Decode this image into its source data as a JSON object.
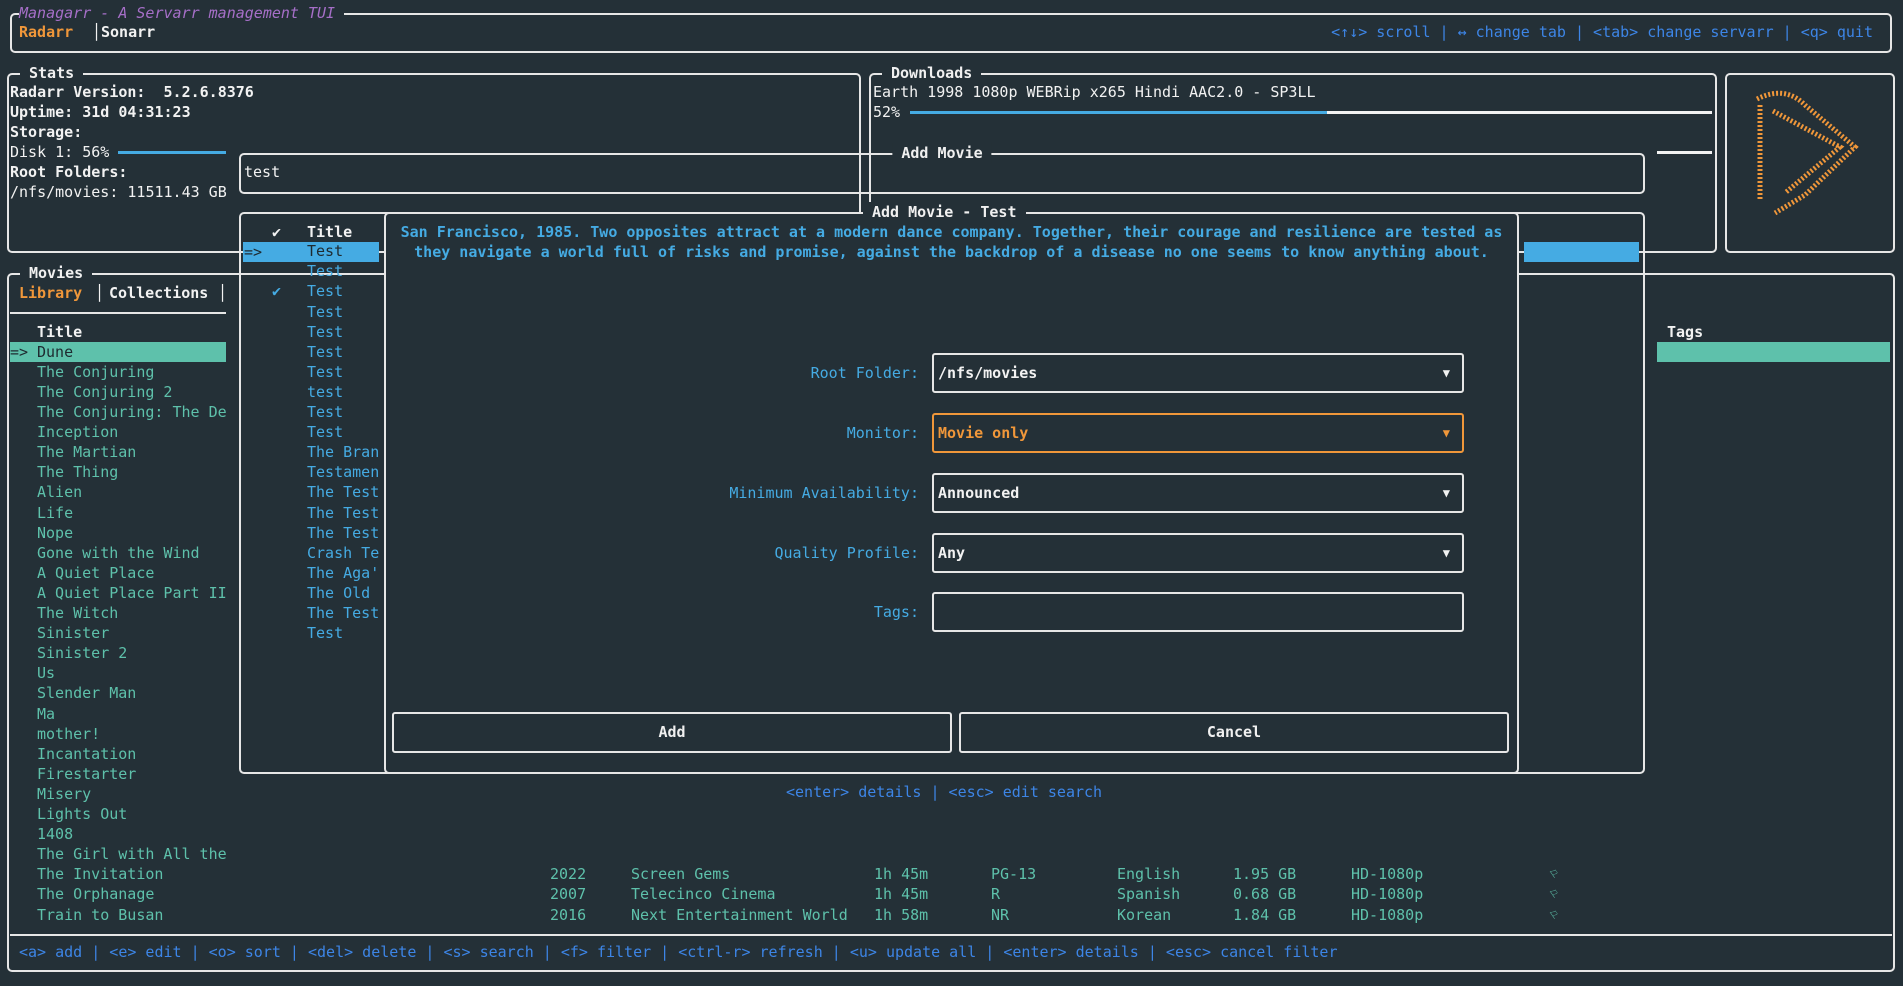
{
  "app": {
    "title": "Managarr - A Servarr management TUI",
    "servarr_tabs": [
      {
        "label": "Radarr",
        "active": true
      },
      {
        "label": "Sonarr",
        "active": false
      }
    ],
    "help": "<↑↓> scroll | ↔ change tab | <tab> change servarr | <q> quit"
  },
  "stats": {
    "title": "Stats",
    "version_label": "Radarr Version:  5.2.6.8376",
    "uptime_label": "Uptime: 31d 04:31:23",
    "storage_label": "Storage:",
    "disk_label": "Disk 1: 56%",
    "disk_percent": 56,
    "root_folders_label": "Root Folders:",
    "root_folder": "/nfs/movies: 11511.43 GB"
  },
  "downloads": {
    "title": "Downloads",
    "items": [
      {
        "name": "Earth 1998 1080p WEBRip x265 Hindi AAC2.0 - SP3LL",
        "percent_label": "52%",
        "percent": 52
      }
    ]
  },
  "logo": {
    "icon": "radarr-logo",
    "color": "#f0973a"
  },
  "movies": {
    "title": "Movies",
    "tabs": [
      {
        "label": "Library",
        "active": true
      },
      {
        "label": "Collections",
        "active": false
      }
    ],
    "title_header": "Title",
    "tags_header": "Tags",
    "selected_marker": "=>",
    "rows": [
      {
        "title": "Dune"
      },
      {
        "title": "The Conjuring"
      },
      {
        "title": "The Conjuring 2"
      },
      {
        "title": "The Conjuring: The De"
      },
      {
        "title": "Inception"
      },
      {
        "title": "The Martian"
      },
      {
        "title": "The Thing"
      },
      {
        "title": "Alien"
      },
      {
        "title": "Life"
      },
      {
        "title": "Nope"
      },
      {
        "title": "Gone with the Wind"
      },
      {
        "title": "A Quiet Place"
      },
      {
        "title": "A Quiet Place Part II"
      },
      {
        "title": "The Witch"
      },
      {
        "title": "Sinister"
      },
      {
        "title": "Sinister 2"
      },
      {
        "title": "Us"
      },
      {
        "title": "Slender Man"
      },
      {
        "title": "Ma"
      },
      {
        "title": "mother!"
      },
      {
        "title": "Incantation"
      },
      {
        "title": "Firestarter"
      },
      {
        "title": "Misery"
      },
      {
        "title": "Lights Out"
      },
      {
        "title": "1408"
      },
      {
        "title": "The Girl with All the"
      },
      {
        "title": "The Invitation",
        "year": "2022",
        "studio": "Screen Gems",
        "runtime": "1h 45m",
        "rating": "PG-13",
        "language": "English",
        "size": "1.95 GB",
        "quality": "HD-1080p",
        "monitored_icon": "bookmark-icon"
      },
      {
        "title": "The Orphanage",
        "year": "2007",
        "studio": "Telecinco Cinema",
        "runtime": "1h 45m",
        "rating": "R",
        "language": "Spanish",
        "size": "0.68 GB",
        "quality": "HD-1080p",
        "monitored_icon": "bookmark-icon"
      },
      {
        "title": "Train to Busan",
        "year": "2016",
        "studio": "Next Entertainment World",
        "runtime": "1h 58m",
        "rating": "NR",
        "language": "Korean",
        "size": "1.84 GB",
        "quality": "HD-1080p",
        "monitored_icon": "bookmark-icon"
      }
    ],
    "help": "<a> add | <e> edit | <o> sort | <del> delete | <s> search | <f> filter | <ctrl-r> refresh | <u> update all | <enter> details | <esc> cancel filter"
  },
  "add_movie": {
    "title": "Add Movie",
    "search_value": "test",
    "results_check_header": "✔",
    "results_title_header": "Title",
    "selected_marker": "=>",
    "results": [
      {
        "title": "Test",
        "in_library": false
      },
      {
        "title": "Test",
        "in_library": false
      },
      {
        "title": "Test",
        "in_library": true
      },
      {
        "title": "Test",
        "in_library": false
      },
      {
        "title": "Test",
        "in_library": false
      },
      {
        "title": "Test",
        "in_library": false
      },
      {
        "title": "Test",
        "in_library": false
      },
      {
        "title": "test",
        "in_library": false
      },
      {
        "title": "Test",
        "in_library": false
      },
      {
        "title": "Test",
        "in_library": false
      },
      {
        "title": "The Bran",
        "in_library": false
      },
      {
        "title": "Testamen",
        "in_library": false
      },
      {
        "title": "The Test",
        "in_library": false
      },
      {
        "title": "The Test",
        "in_library": false
      },
      {
        "title": "The Test",
        "in_library": false
      },
      {
        "title": "Crash Te",
        "in_library": false
      },
      {
        "title": "The Aga'",
        "in_library": false
      },
      {
        "title": "The Old",
        "in_library": false
      },
      {
        "title": "The Test",
        "in_library": false
      },
      {
        "title": "Test",
        "in_library": false
      }
    ],
    "help": "<enter> details | <esc> edit search"
  },
  "modal": {
    "title": "Add Movie - Test",
    "overview_line1": "San Francisco, 1985. Two opposites attract at a modern dance company. Together, their courage and resilience are tested as",
    "overview_line2": "they navigate a world full of risks and promise, against the backdrop of a disease no one seems to know anything about.",
    "fields": [
      {
        "label": "Root Folder:",
        "value": "/nfs/movies",
        "focused": false
      },
      {
        "label": "Monitor:",
        "value": "Movie only",
        "focused": true
      },
      {
        "label": "Minimum Availability:",
        "value": "Announced",
        "focused": false
      },
      {
        "label": "Quality Profile:",
        "value": "Any",
        "focused": false
      }
    ],
    "tags_label": "Tags:",
    "tags_value": "",
    "dropdown_arrow": "▼",
    "add_label": "Add",
    "cancel_label": "Cancel"
  },
  "colors": {
    "background": "#243037",
    "accent": "#f0973a",
    "teal": "#5ec1ab",
    "blue": "#45abe3",
    "help": "#3d85e6",
    "title": "#a66fc8"
  }
}
